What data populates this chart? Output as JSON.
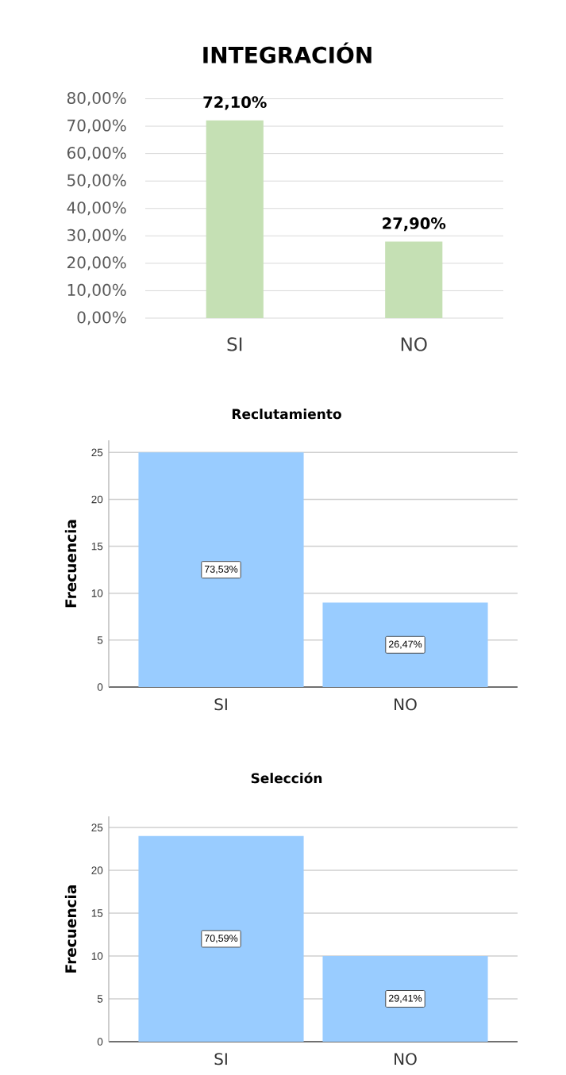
{
  "chart_data": [
    {
      "type": "bar",
      "title": "INTEGRACIÓN",
      "categories": [
        "SI",
        "NO"
      ],
      "values": [
        72.1,
        27.9
      ],
      "value_labels": [
        "72,10%",
        "27,90%"
      ],
      "color": "#c5e0b4",
      "ylim": [
        0,
        80
      ],
      "yticks": [
        {
          "value": 0,
          "label": "0,00%"
        },
        {
          "value": 10,
          "label": "10,00%"
        },
        {
          "value": 20,
          "label": "20,00%"
        },
        {
          "value": 30,
          "label": "30,00%"
        },
        {
          "value": 40,
          "label": "40,00%"
        },
        {
          "value": 50,
          "label": "50,00%"
        },
        {
          "value": 60,
          "label": "60,00%"
        },
        {
          "value": 70,
          "label": "70,00%"
        },
        {
          "value": 80,
          "label": "80,00%"
        }
      ],
      "grid": "y"
    },
    {
      "type": "bar",
      "title": "Reclutamiento",
      "ylabel": "Frecuencia",
      "categories": [
        "SI",
        "NO"
      ],
      "values": [
        25,
        9
      ],
      "annotations": [
        "73,53%",
        "26,47%"
      ],
      "color": "#99ccff",
      "ylim": [
        0,
        26.3
      ],
      "yticks": [
        0,
        5,
        10,
        15,
        20,
        25
      ],
      "grid": "y"
    },
    {
      "type": "bar",
      "title": "Selección",
      "ylabel": "Frecuencia",
      "categories": [
        "SI",
        "NO"
      ],
      "values": [
        24,
        10
      ],
      "annotations": [
        "70,59%",
        "29,41%"
      ],
      "color": "#99ccff",
      "ylim": [
        0,
        26.3
      ],
      "yticks": [
        0,
        5,
        10,
        15,
        20,
        25
      ],
      "grid": "y"
    }
  ]
}
